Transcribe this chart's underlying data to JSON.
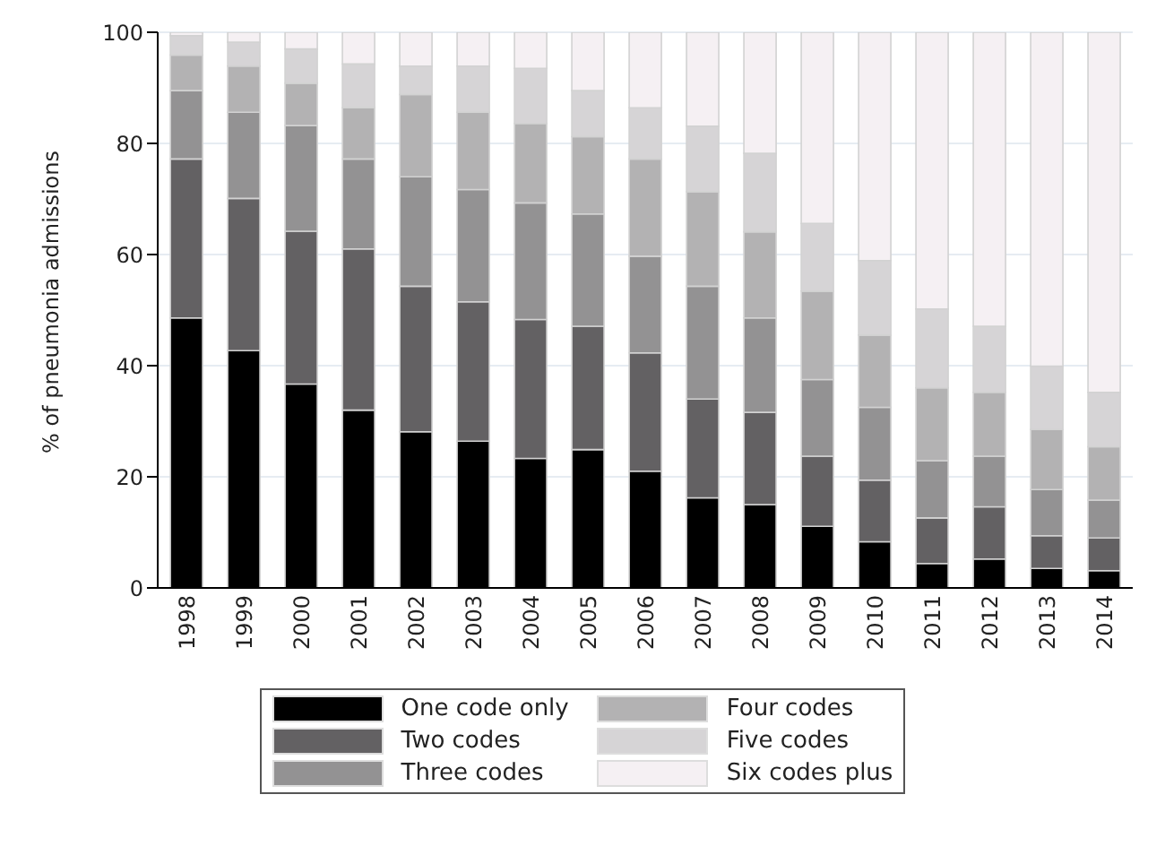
{
  "chart_data": {
    "type": "bar",
    "stacked": true,
    "ylabel": "% of pneumonia admissions",
    "categories": [
      "1998",
      "1999",
      "2000",
      "2001",
      "2002",
      "2003",
      "2004",
      "2005",
      "2006",
      "2007",
      "2008",
      "2009",
      "2010",
      "2011",
      "2012",
      "2013",
      "2014"
    ],
    "series": [
      {
        "name": "One code only",
        "color": "#000000",
        "values": [
          48.6,
          42.7,
          36.7,
          32.0,
          28.1,
          26.4,
          23.3,
          24.9,
          21.0,
          16.2,
          15.0,
          11.1,
          8.3,
          4.4,
          5.2,
          3.5,
          3.1
        ]
      },
      {
        "name": "Two codes",
        "color": "#636163",
        "values": [
          28.6,
          27.4,
          27.5,
          29.0,
          26.2,
          25.1,
          25.0,
          22.2,
          21.3,
          17.8,
          16.6,
          12.6,
          11.1,
          8.2,
          9.4,
          5.9,
          5.9
        ]
      },
      {
        "name": "Three codes",
        "color": "#939293",
        "values": [
          12.3,
          15.5,
          19.0,
          16.2,
          19.7,
          20.2,
          21.0,
          20.2,
          17.4,
          20.3,
          17.0,
          13.8,
          13.1,
          10.3,
          9.1,
          8.3,
          6.8
        ]
      },
      {
        "name": "Four codes",
        "color": "#b3b2b3",
        "values": [
          6.4,
          8.3,
          7.6,
          9.2,
          14.8,
          13.9,
          14.3,
          13.9,
          17.5,
          17.0,
          15.5,
          15.9,
          13.0,
          13.1,
          11.5,
          10.8,
          9.6
        ]
      },
      {
        "name": "Five codes",
        "color": "#d6d4d6",
        "values": [
          3.5,
          4.3,
          6.2,
          7.9,
          5.1,
          8.3,
          9.9,
          8.3,
          9.2,
          11.8,
          14.1,
          12.2,
          13.4,
          14.2,
          11.9,
          11.4,
          9.8
        ]
      },
      {
        "name": "Six codes plus",
        "color": "#f5f0f3",
        "values": [
          0.6,
          1.8,
          3.0,
          5.7,
          6.1,
          6.1,
          6.5,
          10.5,
          13.6,
          16.9,
          21.8,
          34.4,
          41.1,
          49.8,
          52.9,
          60.1,
          64.8
        ]
      }
    ],
    "ylim": [
      0,
      100
    ],
    "yticks": [
      0,
      20,
      40,
      60,
      80,
      100
    ],
    "grid": "y",
    "legend": "bottom"
  }
}
